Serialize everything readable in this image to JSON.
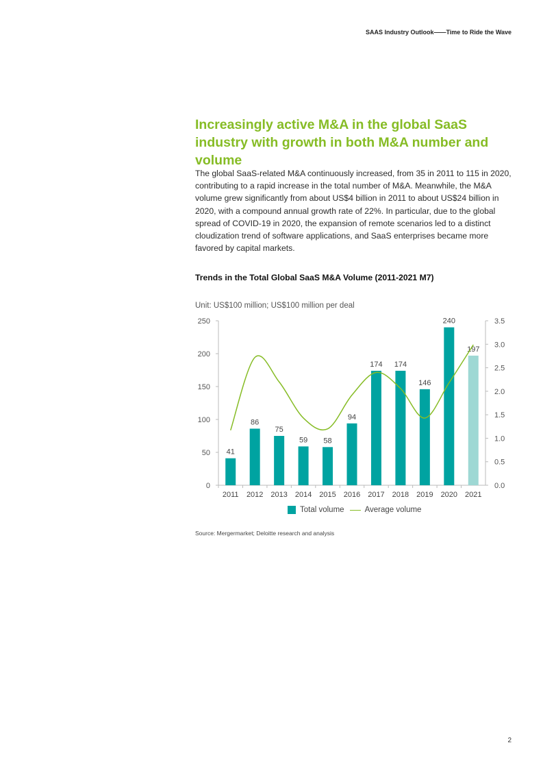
{
  "header": {
    "running_title": "SAAS Industry Outlook——Time to Ride the Wave"
  },
  "section": {
    "title": "Increasingly active M&A in the global SaaS industry with growth in both M&A number and volume",
    "body": "The global SaaS-related M&A continuously increased, from 35 in 2011 to 115 in 2020, contributing to a rapid increase in the total number of M&A. Meanwhile, the M&A volume grew significantly from about US$4 billion in 2011 to about US$24 billion in 2020, with a compound annual growth rate of 22%. In particular, due to the global spread of COVID-19 in 2020, the expansion of remote scenarios led to a distinct cloudization trend of software applications, and SaaS enterprises became more favored by capital markets."
  },
  "chart_data": {
    "type": "bar",
    "title": "Trends in the Total Global SaaS M&A Volume (2011-2021 M7)",
    "unit_label": "Unit: US$100 million; US$100 million per deal",
    "categories": [
      "2011",
      "2012",
      "2013",
      "2014",
      "2015",
      "2016",
      "2017",
      "2018",
      "2019",
      "2020",
      "2021"
    ],
    "series": [
      {
        "name": "Total volume",
        "type": "bar",
        "axis": "left",
        "color": "#00a3a1",
        "highlight_last_color": "#9ed8d4",
        "values": [
          41,
          86,
          75,
          59,
          58,
          94,
          174,
          174,
          146,
          240,
          197
        ]
      },
      {
        "name": "Average volume",
        "type": "line",
        "axis": "right",
        "color": "#86bc25",
        "values": [
          1.17,
          2.72,
          2.2,
          1.43,
          1.2,
          1.92,
          2.4,
          2.06,
          1.43,
          2.18,
          2.99
        ]
      }
    ],
    "ylim_left": [
      0,
      250
    ],
    "yticks_left": [
      "0",
      "50",
      "100",
      "150",
      "200",
      "250"
    ],
    "ylim_right": [
      0,
      3.5
    ],
    "yticks_right": [
      "0.0",
      "0.5",
      "1.0",
      "1.5",
      "2.0",
      "2.5",
      "3.0",
      "3.5"
    ],
    "grid": false,
    "legend": "bottom"
  },
  "footer": {
    "source": "Source: Mergermarket; Deloitte research and analysis",
    "page_number": "2"
  }
}
